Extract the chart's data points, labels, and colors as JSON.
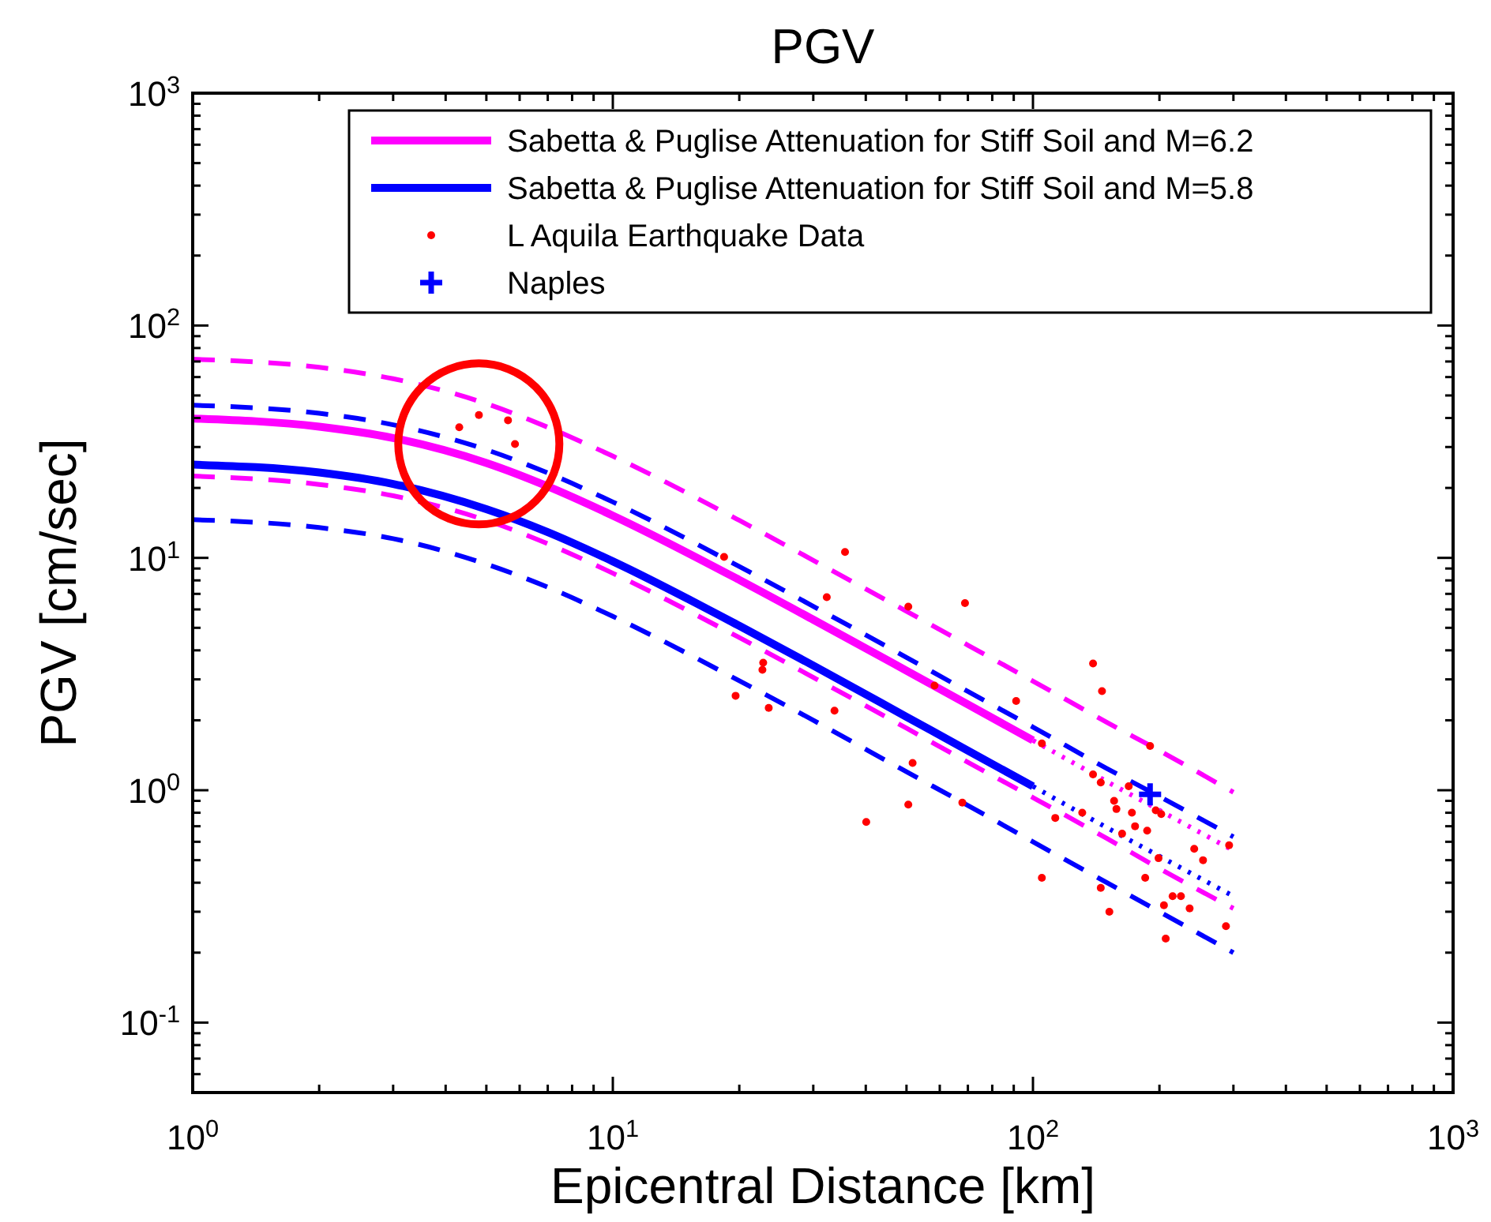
{
  "chart_data": {
    "type": "line",
    "title": "PGV",
    "xlabel": "Epicentral Distance [km]",
    "ylabel": "PGV [cm/sec]",
    "log": "xy",
    "legend": "top right",
    "grid": false,
    "xlim": [
      1,
      1000
    ],
    "ylim": [
      0.05,
      1000
    ],
    "xticks": [
      {
        "value": 1,
        "label": "10$^{0}$"
      },
      {
        "value": 2,
        "label": null
      },
      {
        "value": 3,
        "label": null
      },
      {
        "value": 4,
        "label": null
      },
      {
        "value": 5,
        "label": null
      },
      {
        "value": 6,
        "label": null
      },
      {
        "value": 7,
        "label": null
      },
      {
        "value": 8,
        "label": null
      },
      {
        "value": 9,
        "label": null
      },
      {
        "value": 10,
        "label": "10$^{1}$"
      },
      {
        "value": 20,
        "label": null
      },
      {
        "value": 30,
        "label": null
      },
      {
        "value": 40,
        "label": null
      },
      {
        "value": 50,
        "label": null
      },
      {
        "value": 60,
        "label": null
      },
      {
        "value": 70,
        "label": null
      },
      {
        "value": 80,
        "label": null
      },
      {
        "value": 90,
        "label": null
      },
      {
        "value": 100,
        "label": "10$^{2}$"
      },
      {
        "value": 200,
        "label": null
      },
      {
        "value": 300,
        "label": null
      },
      {
        "value": 400,
        "label": null
      },
      {
        "value": 500,
        "label": null
      },
      {
        "value": 600,
        "label": null
      },
      {
        "value": 700,
        "label": null
      },
      {
        "value": 800,
        "label": null
      },
      {
        "value": 900,
        "label": null
      },
      {
        "value": 1000,
        "label": "10$^{3}$"
      }
    ],
    "yticks": [
      {
        "value": 0.06,
        "label": null
      },
      {
        "value": 0.07,
        "label": null
      },
      {
        "value": 0.08,
        "label": null
      },
      {
        "value": 0.09,
        "label": null
      },
      {
        "value": 0.1,
        "label": "10$^{-1}$"
      },
      {
        "value": 0.2,
        "label": null
      },
      {
        "value": 0.3,
        "label": null
      },
      {
        "value": 0.4,
        "label": null
      },
      {
        "value": 0.5,
        "label": null
      },
      {
        "value": 0.6,
        "label": null
      },
      {
        "value": 0.7,
        "label": null
      },
      {
        "value": 0.8,
        "label": null
      },
      {
        "value": 0.9,
        "label": null
      },
      {
        "value": 1,
        "label": "10$^{0}$"
      },
      {
        "value": 2,
        "label": null
      },
      {
        "value": 3,
        "label": null
      },
      {
        "value": 4,
        "label": null
      },
      {
        "value": 5,
        "label": null
      },
      {
        "value": 6,
        "label": null
      },
      {
        "value": 7,
        "label": null
      },
      {
        "value": 8,
        "label": null
      },
      {
        "value": 9,
        "label": null
      },
      {
        "value": 10,
        "label": "10$^{1}$"
      },
      {
        "value": 20,
        "label": null
      },
      {
        "value": 30,
        "label": null
      },
      {
        "value": 40,
        "label": null
      },
      {
        "value": 50,
        "label": null
      },
      {
        "value": 60,
        "label": null
      },
      {
        "value": 70,
        "label": null
      },
      {
        "value": 80,
        "label": null
      },
      {
        "value": 90,
        "label": null
      },
      {
        "value": 100,
        "label": "10$^{2}$"
      },
      {
        "value": 200,
        "label": null
      },
      {
        "value": 300,
        "label": null
      },
      {
        "value": 400,
        "label": null
      },
      {
        "value": 500,
        "label": null
      },
      {
        "value": 600,
        "label": null
      },
      {
        "value": 700,
        "label": null
      },
      {
        "value": 800,
        "label": null
      },
      {
        "value": 900,
        "label": null
      },
      {
        "value": 1000,
        "label": "10$^{3}$"
      }
    ],
    "series": [
      {
        "color": "#ff00ff",
        "line_style": "dashed",
        "x": [
          1,
          2,
          3,
          5,
          7,
          10,
          20,
          30,
          50,
          70,
          100,
          150,
          200,
          300
        ],
        "values": [
          71.6,
          66.1,
          59.0,
          46.1,
          36.5,
          27.4,
          14.5,
          9.76,
          5.89,
          4.21,
          2.95,
          1.96,
          1.48,
          0.98
        ]
      },
      {
        "color": "#ff00ff",
        "line_style": "dashed",
        "x": [
          1,
          2,
          3,
          5,
          7,
          10,
          20,
          30,
          50,
          70,
          100,
          150,
          200,
          300
        ],
        "values": [
          22.5,
          20.7,
          18.5,
          14.5,
          11.5,
          8.59,
          4.54,
          3.06,
          1.85,
          1.32,
          0.93,
          0.62,
          0.46,
          0.31
        ]
      },
      {
        "color": "#0000ff",
        "line_style": "dashed",
        "x": [
          1,
          2,
          3,
          5,
          7,
          10,
          20,
          30,
          50,
          70,
          100,
          150,
          200,
          300
        ],
        "values": [
          45.4,
          41.9,
          37.4,
          29.2,
          23.2,
          17.4,
          9.18,
          6.19,
          3.73,
          2.66,
          1.87,
          1.24,
          0.94,
          0.63
        ]
      },
      {
        "color": "#0000ff",
        "line_style": "dashed",
        "x": [
          1,
          2,
          3,
          5,
          7,
          10,
          20,
          30,
          50,
          70,
          100,
          150,
          200,
          300
        ],
        "values": [
          14.6,
          13.5,
          12.1,
          9.4,
          7.48,
          5.6,
          2.96,
          2.0,
          1.2,
          0.86,
          0.6,
          0.4,
          0.3,
          0.2
        ]
      },
      {
        "color": "#ff00ff",
        "line_style": "dotted",
        "x": [
          100,
          150,
          200,
          300
        ],
        "values": [
          1.64,
          1.09,
          0.82,
          0.55
        ]
      },
      {
        "color": "#0000ff",
        "line_style": "dotted",
        "x": [
          100,
          150,
          200,
          300
        ],
        "values": [
          1.04,
          0.69,
          0.52,
          0.35
        ]
      },
      {
        "name": "Sabetta & Puglise Attenuation for Stiff Soil and M=6.2",
        "color": "#ff00ff",
        "line_style": "solid",
        "x": [
          1,
          2,
          3,
          5,
          7,
          10,
          20,
          30,
          50,
          70,
          100
        ],
        "values": [
          39.8,
          36.7,
          32.8,
          25.6,
          20.3,
          15.2,
          8.04,
          5.42,
          3.27,
          2.34,
          1.64
        ]
      },
      {
        "name": "Sabetta & Puglise Attenuation for Stiff Soil and M=5.8",
        "color": "#0000ff",
        "line_style": "solid",
        "x": [
          1,
          2,
          3,
          5,
          7,
          10,
          20,
          30,
          50,
          70,
          100
        ],
        "values": [
          25.2,
          23.3,
          20.8,
          16.2,
          12.9,
          9.66,
          5.1,
          3.44,
          2.07,
          1.48,
          1.04
        ]
      },
      {
        "type": "scatter",
        "name": "L Aquila Earthquake Data",
        "color": "#ff0000",
        "marker": "circle",
        "x": [
          4.31,
          4.8,
          5.63,
          5.85,
          18.4,
          22.8,
          22.7,
          19.6,
          23.5,
          35.7,
          32.3,
          50.5,
          68.9,
          33.7,
          58.3,
          91.2,
          105,
          139,
          146,
          190,
          51.7,
          50.5,
          40.1,
          67.9,
          139,
          145,
          169,
          156,
          158,
          131,
          113,
          172,
          196,
          202,
          175,
          163,
          187,
          242,
          254,
          199,
          293,
          185,
          105,
          145,
          215,
          225,
          236,
          205,
          152,
          288,
          207
        ],
        "values": [
          36.5,
          41.2,
          39.1,
          30.9,
          10.1,
          3.54,
          3.3,
          2.55,
          2.26,
          10.6,
          6.77,
          6.17,
          6.39,
          2.2,
          2.82,
          2.42,
          1.59,
          3.51,
          2.67,
          1.55,
          1.31,
          0.867,
          0.73,
          0.885,
          1.17,
          1.08,
          1.04,
          0.9,
          0.83,
          0.8,
          0.76,
          0.8,
          0.82,
          0.79,
          0.7,
          0.65,
          0.67,
          0.56,
          0.5,
          0.51,
          0.58,
          0.42,
          0.42,
          0.38,
          0.35,
          0.35,
          0.31,
          0.32,
          0.3,
          0.26,
          0.23
        ]
      },
      {
        "type": "scatter",
        "name": "Naples",
        "color": "#0000ff",
        "marker": "cross",
        "x": [
          190
        ],
        "values": [
          0.96
        ]
      }
    ]
  }
}
